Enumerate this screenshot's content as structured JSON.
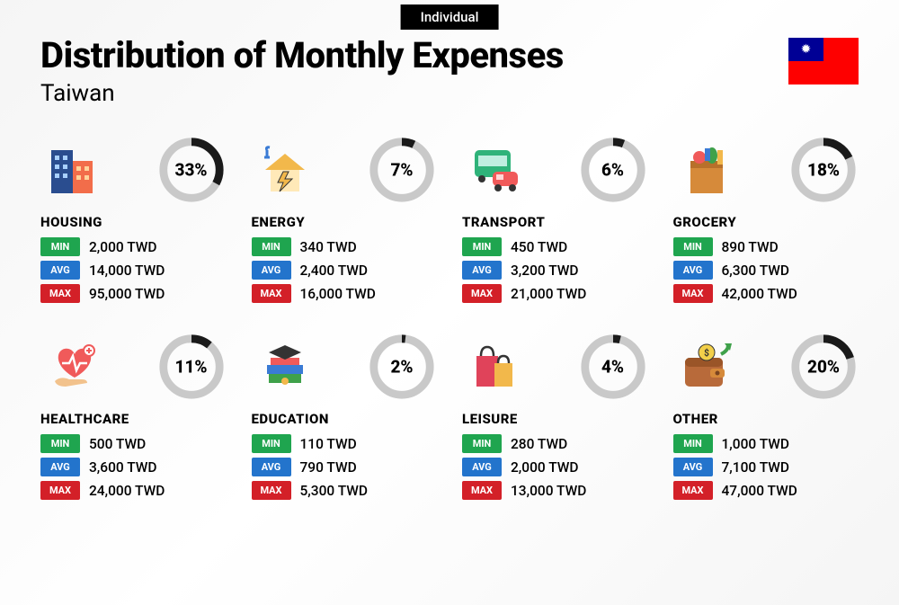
{
  "badge": "Individual",
  "title": "Distribution of Monthly Expenses",
  "subtitle": "Taiwan",
  "currency": "TWD",
  "labels": {
    "min": "MIN",
    "avg": "AVG",
    "max": "MAX"
  },
  "donut": {
    "ring_color": "#c9c9c9",
    "arc_color": "#1a1a1a",
    "stroke_width": 9,
    "radius": 32
  },
  "tag_colors": {
    "min": "#1fa54f",
    "avg": "#2374cc",
    "max": "#d32028"
  },
  "categories": [
    {
      "key": "housing",
      "name": "HOUSING",
      "pct": 33,
      "min": "2,000",
      "avg": "14,000",
      "max": "95,000",
      "icon": "buildings"
    },
    {
      "key": "energy",
      "name": "ENERGY",
      "pct": 7,
      "min": "340",
      "avg": "2,400",
      "max": "16,000",
      "icon": "energy-house"
    },
    {
      "key": "transport",
      "name": "TRANSPORT",
      "pct": 6,
      "min": "450",
      "avg": "3,200",
      "max": "21,000",
      "icon": "bus-car"
    },
    {
      "key": "grocery",
      "name": "GROCERY",
      "pct": 18,
      "min": "890",
      "avg": "6,300",
      "max": "42,000",
      "icon": "grocery-bag"
    },
    {
      "key": "healthcare",
      "name": "HEALTHCARE",
      "pct": 11,
      "min": "500",
      "avg": "3,600",
      "max": "24,000",
      "icon": "heart-hand"
    },
    {
      "key": "education",
      "name": "EDUCATION",
      "pct": 2,
      "min": "110",
      "avg": "790",
      "max": "5,300",
      "icon": "grad-books"
    },
    {
      "key": "leisure",
      "name": "LEISURE",
      "pct": 4,
      "min": "280",
      "avg": "2,000",
      "max": "13,000",
      "icon": "shopping-bags"
    },
    {
      "key": "other",
      "name": "OTHER",
      "pct": 20,
      "min": "1,000",
      "avg": "7,100",
      "max": "47,000",
      "icon": "wallet-arrow"
    }
  ]
}
